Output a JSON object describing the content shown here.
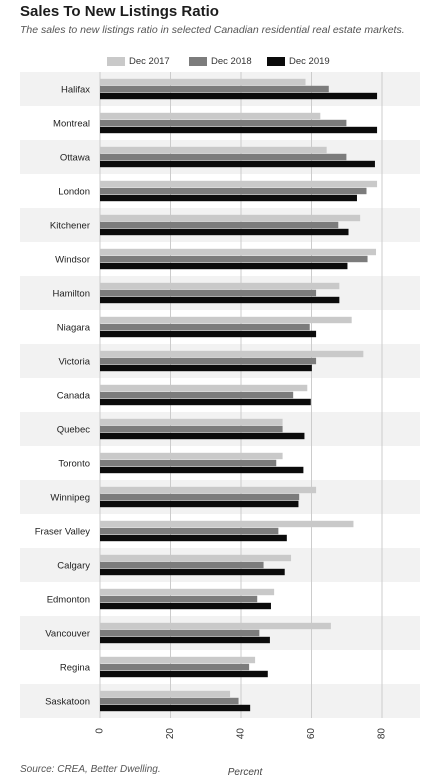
{
  "header": {
    "title": "Sales To New Listings Ratio",
    "subtitle": "The sales to new listings ratio in selected Canadian residential real estate markets."
  },
  "footer": {
    "source": "Source: CREA, Better Dwelling."
  },
  "colors": {
    "dec2017": "#c9c9c9",
    "dec2018": "#7c7c7c",
    "dec2019": "#0b0b0b",
    "band": "#f2f2f2",
    "grid": "#cccccc"
  },
  "chart_data": {
    "type": "bar",
    "orientation": "horizontal",
    "title": "Sales To New Listings Ratio",
    "subtitle": "The sales to new listings ratio in selected Canadian residential real estate markets.",
    "xlabel": "Percent",
    "ylabel": "",
    "xlim": [
      0,
      80
    ],
    "xticks": [
      0,
      20,
      40,
      60,
      80
    ],
    "grid": true,
    "legend_position": "top",
    "categories": [
      "Halifax",
      "Montreal",
      "Ottawa",
      "London",
      "Kitchener",
      "Windsor",
      "Hamilton",
      "Niagara",
      "Victoria",
      "Canada",
      "Quebec",
      "Toronto",
      "Winnipeg",
      "Fraser Valley",
      "Calgary",
      "Edmonton",
      "Vancouver",
      "Regina",
      "Saskatoon"
    ],
    "series": [
      {
        "name": "Dec 2017",
        "values": [
          58.3,
          62.5,
          64.3,
          78.6,
          73.8,
          78.3,
          67.9,
          71.4,
          74.7,
          58.8,
          51.8,
          51.8,
          61.3,
          71.9,
          54.2,
          49.4,
          65.5,
          44.0,
          36.9
        ]
      },
      {
        "name": "Dec 2018",
        "values": [
          64.9,
          69.9,
          69.9,
          75.6,
          67.6,
          75.9,
          61.3,
          59.5,
          61.3,
          54.8,
          51.8,
          50.0,
          56.5,
          50.6,
          46.4,
          44.6,
          45.2,
          42.3,
          39.3
        ]
      },
      {
        "name": "Dec 2019",
        "values": [
          78.6,
          78.6,
          78.0,
          72.9,
          70.5,
          70.2,
          67.9,
          61.3,
          60.1,
          59.8,
          58.0,
          57.7,
          56.3,
          53.0,
          52.4,
          48.5,
          48.2,
          47.6,
          42.6
        ]
      }
    ]
  }
}
